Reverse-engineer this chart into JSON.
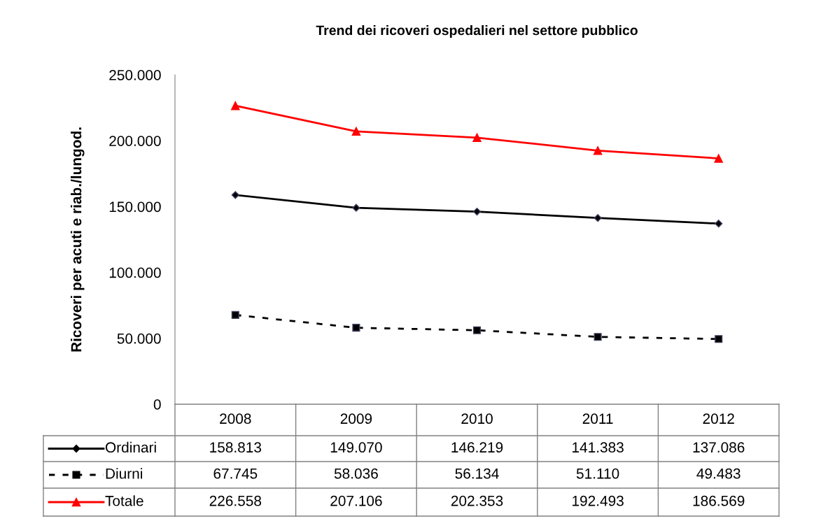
{
  "chart_data": {
    "type": "line",
    "title": "Trend dei ricoveri ospedalieri nel settore pubblico",
    "ylabel": "Ricoveri per acuti e riab./lungod.",
    "categories": [
      "2008",
      "2009",
      "2010",
      "2011",
      "2012"
    ],
    "series": [
      {
        "name": "Ordinari",
        "color": "#000000",
        "marker": "diamond",
        "line_style": "solid",
        "values": [
          158813,
          149070,
          146219,
          141383,
          137086
        ],
        "value_labels": [
          "158.813",
          "149.070",
          "146.219",
          "141.383",
          "137.086"
        ]
      },
      {
        "name": "Diurni",
        "color": "#000000",
        "marker": "square",
        "line_style": "dashed",
        "values": [
          67745,
          58036,
          56134,
          51110,
          49483
        ],
        "value_labels": [
          "67.745",
          "58.036",
          "56.134",
          "51.110",
          "49.483"
        ]
      },
      {
        "name": "Totale",
        "color": "#ff0000",
        "marker": "triangle",
        "line_style": "solid",
        "values": [
          226558,
          207106,
          202353,
          192493,
          186569
        ],
        "value_labels": [
          "226.558",
          "207.106",
          "202.353",
          "192.493",
          "186.569"
        ]
      }
    ],
    "ylim": [
      0,
      250000
    ],
    "yticks": [
      {
        "value": 0,
        "label": "0"
      },
      {
        "value": 50000,
        "label": "50.000"
      },
      {
        "value": 100000,
        "label": "100.000"
      },
      {
        "value": 150000,
        "label": "150.000"
      },
      {
        "value": 200000,
        "label": "200.000"
      },
      {
        "value": 250000,
        "label": "250.000"
      }
    ],
    "grid": false,
    "legend": "bottom"
  }
}
